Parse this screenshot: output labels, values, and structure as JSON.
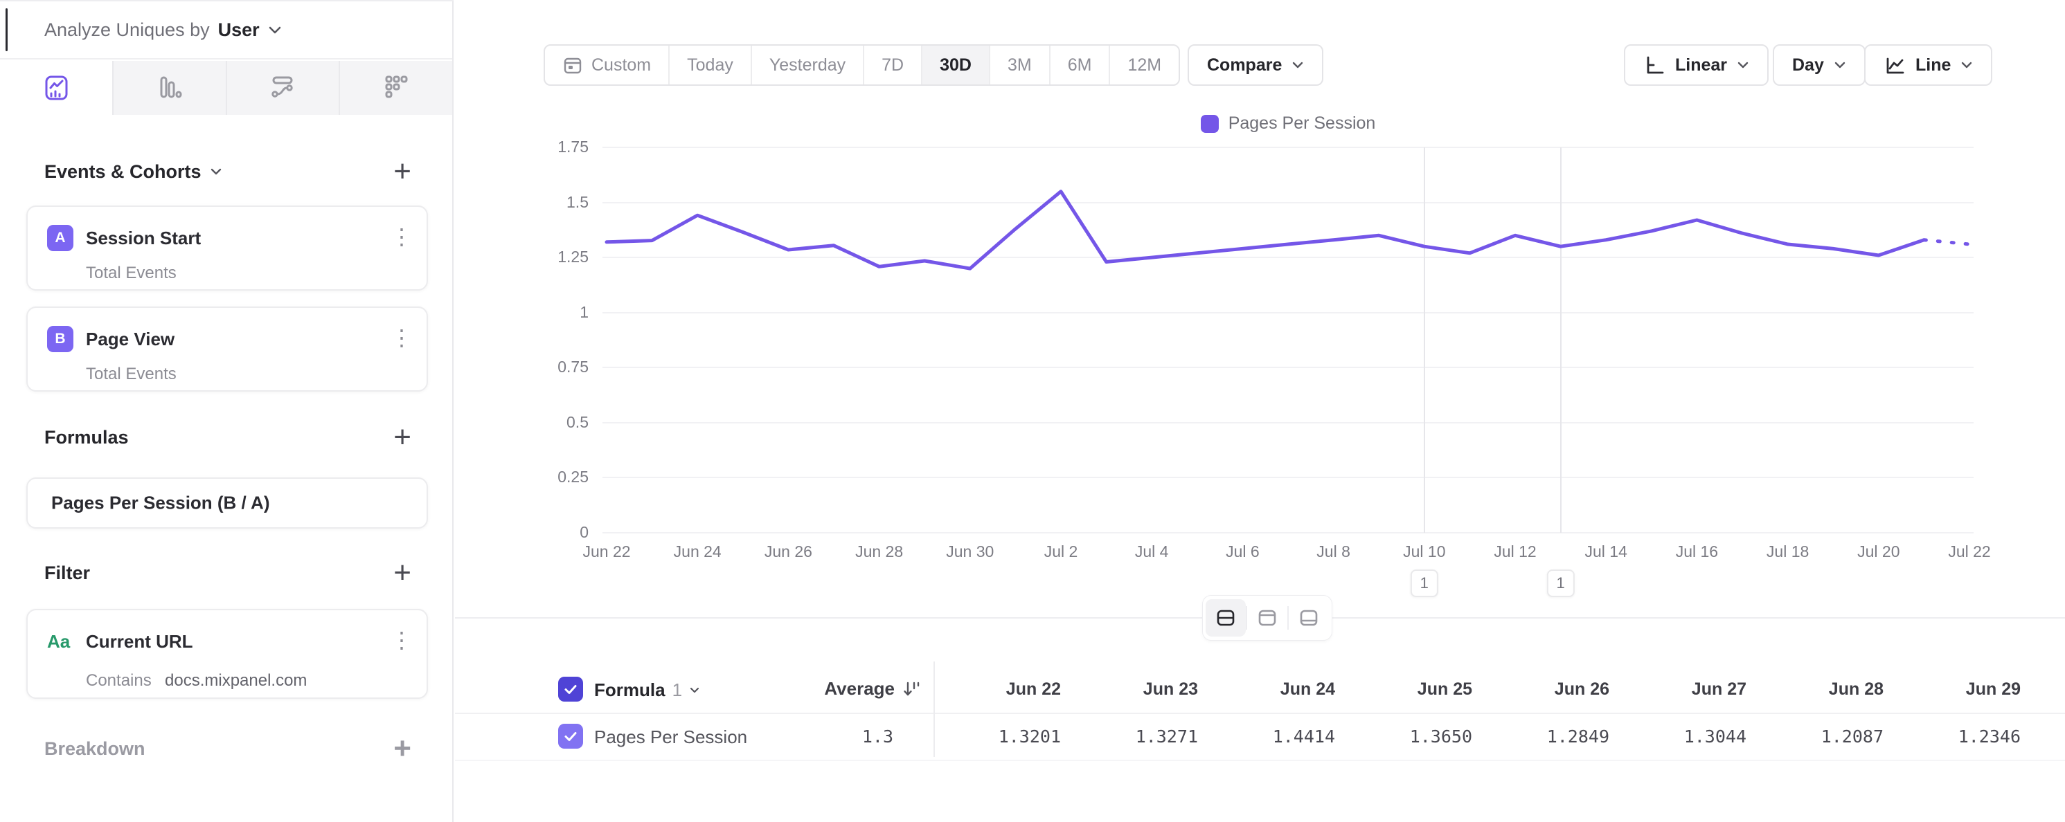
{
  "sidebar": {
    "analyze_prefix": "Analyze Uniques by",
    "analyze_value": "User",
    "tabs": [
      {
        "icon": "insights-chart-icon",
        "active": true
      },
      {
        "icon": "funnel-bars-icon",
        "active": false
      },
      {
        "icon": "flows-icon",
        "active": false
      },
      {
        "icon": "retention-grid-icon",
        "active": false
      }
    ],
    "events_header": "Events & Cohorts",
    "events": [
      {
        "badge": "A",
        "name": "Session Start",
        "subtitle": "Total Events"
      },
      {
        "badge": "B",
        "name": "Page View",
        "subtitle": "Total Events"
      }
    ],
    "formulas_header": "Formulas",
    "formulas": [
      {
        "name": "Pages Per Session (B / A)"
      }
    ],
    "filter_header": "Filter",
    "filters": [
      {
        "icon": "Aa",
        "name": "Current URL",
        "operator": "Contains",
        "value": "docs.mixpanel.com"
      }
    ],
    "breakdown_header": "Breakdown"
  },
  "toolbar": {
    "ranges": [
      "Custom",
      "Today",
      "Yesterday",
      "7D",
      "30D",
      "3M",
      "6M",
      "12M"
    ],
    "active_range": "30D",
    "compare_label": "Compare",
    "scale_label": "Linear",
    "interval_label": "Day",
    "chart_type_label": "Line"
  },
  "chart_data": {
    "type": "line",
    "title": "",
    "xlabel": "",
    "ylabel": "",
    "ylim": [
      0,
      1.75
    ],
    "y_ticks": [
      "0",
      "0.25",
      "0.5",
      "0.75",
      "1",
      "1.25",
      "1.5",
      "1.75"
    ],
    "x_tick_every": 2,
    "grid": true,
    "legend_position": "top-center",
    "series": [
      {
        "name": "Pages Per Session",
        "color": "#7456e8",
        "incomplete_tail": true,
        "x": [
          "Jun 22",
          "Jun 23",
          "Jun 24",
          "Jun 25",
          "Jun 26",
          "Jun 27",
          "Jun 28",
          "Jun 29",
          "Jun 30",
          "Jul 1",
          "Jul 2",
          "Jul 3",
          "Jul 4",
          "Jul 5",
          "Jul 6",
          "Jul 7",
          "Jul 8",
          "Jul 9",
          "Jul 10",
          "Jul 11",
          "Jul 12",
          "Jul 13",
          "Jul 14",
          "Jul 15",
          "Jul 16",
          "Jul 17",
          "Jul 18",
          "Jul 19",
          "Jul 20",
          "Jul 21",
          "Jul 22"
        ],
        "values": [
          1.3201,
          1.3271,
          1.4414,
          1.365,
          1.2849,
          1.3044,
          1.2087,
          1.2346,
          1.2,
          1.38,
          1.55,
          1.23,
          1.25,
          1.27,
          1.29,
          1.31,
          1.33,
          1.35,
          1.3,
          1.27,
          1.35,
          1.3,
          1.33,
          1.37,
          1.42,
          1.36,
          1.31,
          1.29,
          1.26,
          1.33,
          1.31
        ]
      }
    ],
    "annotations": [
      {
        "day_index": 18,
        "label": "1"
      },
      {
        "day_index": 21,
        "label": "1"
      }
    ]
  },
  "table": {
    "group_label": "Formula",
    "group_number": "1",
    "average_label": "Average",
    "columns": [
      "Jun 22",
      "Jun 23",
      "Jun 24",
      "Jun 25",
      "Jun 26",
      "Jun 27",
      "Jun 28",
      "Jun 29"
    ],
    "rows": [
      {
        "name": "Pages Per Session",
        "average": "1.3",
        "values": [
          "1.3201",
          "1.3271",
          "1.4414",
          "1.3650",
          "1.2849",
          "1.3044",
          "1.2087",
          "1.2346"
        ]
      }
    ]
  },
  "icons": {
    "add": "+",
    "kebab": "⋮"
  },
  "colors": {
    "accent": "#7456e8",
    "event_badge": "#7c66f2",
    "checkbox_header": "#4f43d6",
    "checkbox_row": "#8172f2",
    "filter_icon_green": "#27996a",
    "active_pill_bg": "#f3f3f5"
  }
}
